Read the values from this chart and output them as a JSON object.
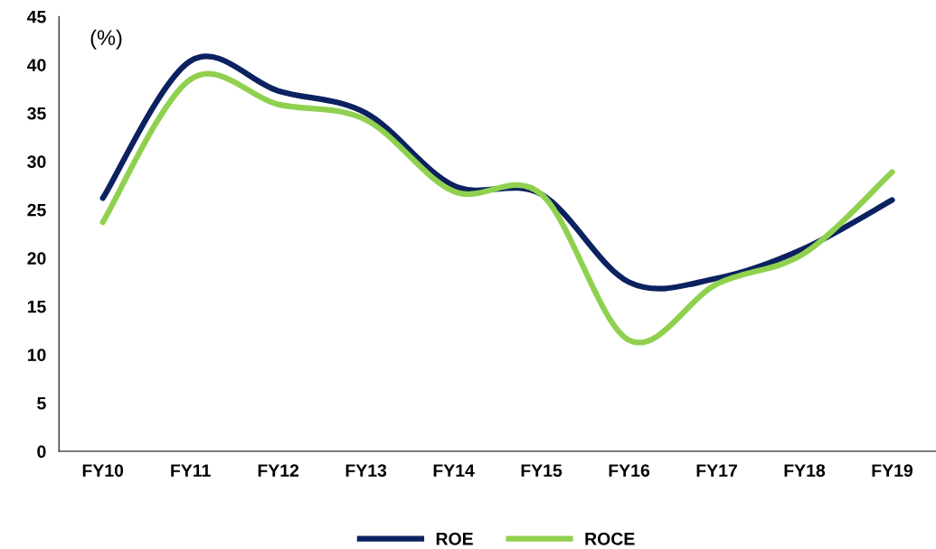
{
  "chart_data": {
    "type": "line",
    "categories": [
      "FY10",
      "FY11",
      "FY12",
      "FY13",
      "FY14",
      "FY15",
      "FY16",
      "FY17",
      "FY18",
      "FY19"
    ],
    "series": [
      {
        "name": "ROE",
        "color": "#0b2160",
        "values": [
          26.2,
          40.4,
          37.3,
          35.0,
          27.5,
          26.6,
          17.5,
          17.9,
          21.0,
          26.0
        ]
      },
      {
        "name": "ROCE",
        "color": "#8fd14f",
        "values": [
          23.7,
          38.5,
          35.9,
          34.3,
          26.9,
          26.6,
          11.5,
          17.3,
          20.5,
          28.9
        ]
      }
    ],
    "ylim": [
      0,
      45
    ],
    "yticks": [
      0,
      5,
      10,
      15,
      20,
      25,
      30,
      35,
      40,
      45
    ],
    "annotations": [
      "(%)"
    ],
    "legend": "bottom",
    "grid": false,
    "marker": "none",
    "line_style": "solid"
  }
}
